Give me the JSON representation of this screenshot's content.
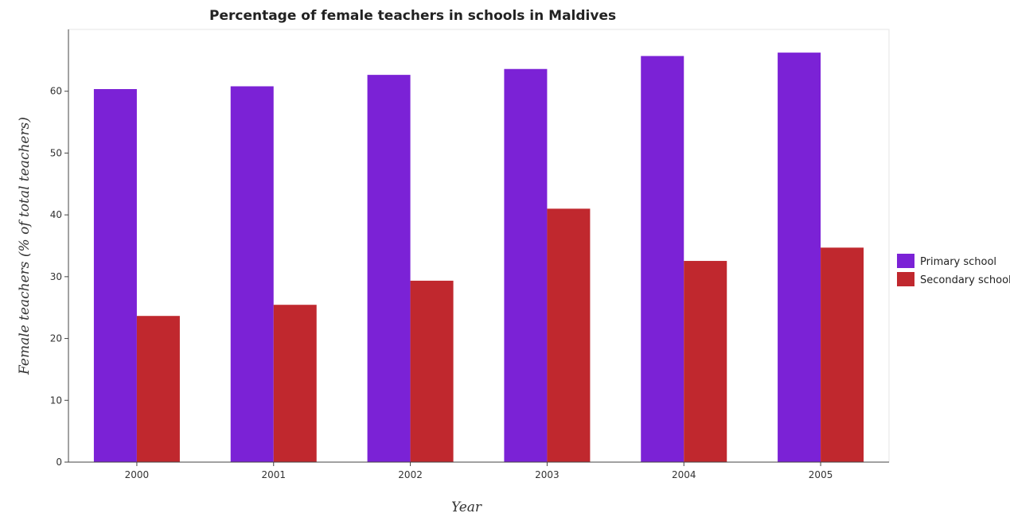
{
  "chart_data": {
    "type": "bar",
    "title": "Percentage of female teachers in schools in Maldives",
    "xlabel": "Year",
    "ylabel": "Female teachers (% of total teachers)",
    "categories": [
      "2000",
      "2001",
      "2002",
      "2003",
      "2004",
      "2005"
    ],
    "series": [
      {
        "name": "Primary school",
        "color": "#7b22d6",
        "values": [
          60.35,
          60.8,
          62.65,
          63.6,
          65.7,
          66.25
        ]
      },
      {
        "name": "Secondary school",
        "color": "#c0282e",
        "values": [
          23.65,
          25.45,
          29.35,
          41.0,
          32.55,
          34.7
        ]
      }
    ],
    "ylim": [
      0,
      70
    ],
    "yticks": [
      0,
      10,
      20,
      30,
      40,
      50,
      60
    ],
    "grid": false,
    "legend": "right"
  }
}
